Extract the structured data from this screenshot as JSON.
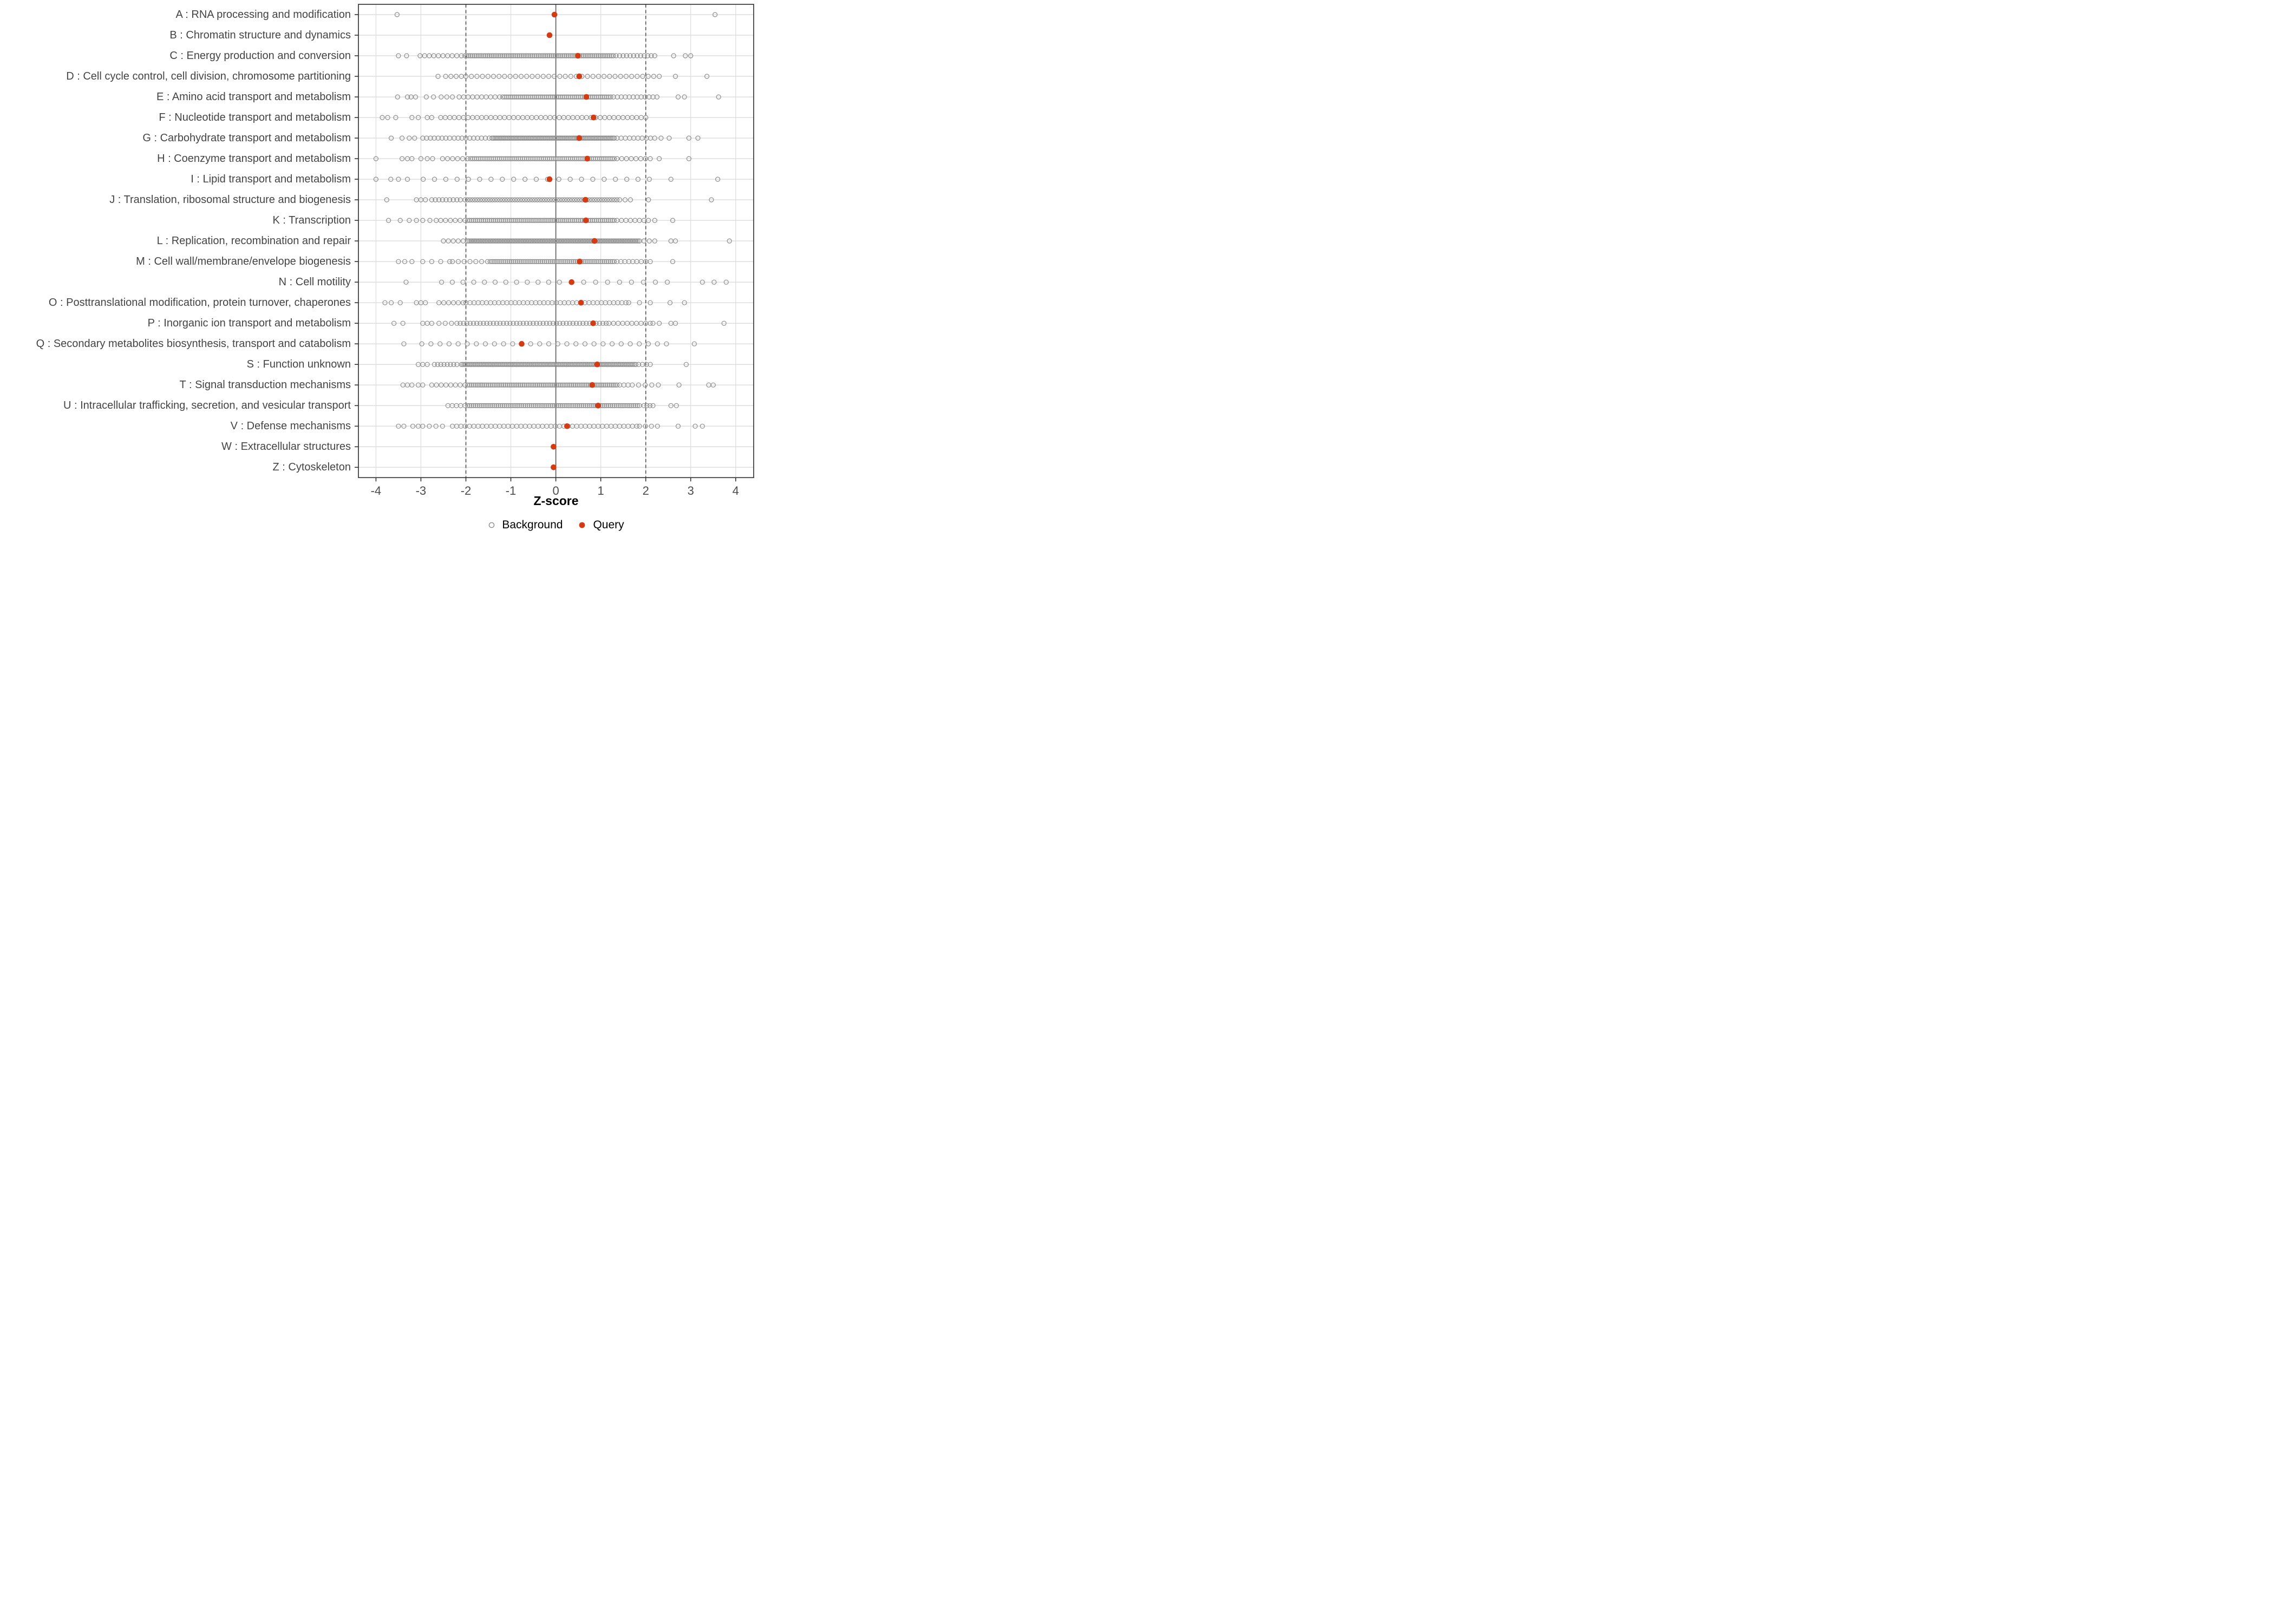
{
  "chart_data": {
    "type": "scatter",
    "variant": "strip-plot",
    "title": "",
    "xlabel": "Z-score",
    "ylabel": "",
    "xlim": [
      -4.39,
      4.4
    ],
    "xticks": [
      -4,
      -3,
      -2,
      -1,
      0,
      1,
      2,
      3,
      4
    ],
    "grid": true,
    "reference_lines": {
      "solid": [
        0
      ],
      "dashed": [
        -2,
        2
      ]
    },
    "legend": {
      "position": "bottom",
      "background_label": "Background",
      "query_label": "Query"
    },
    "colors": {
      "query_fill": "#D33B12",
      "background_stroke": "#8C8C8C",
      "grid_light": "#DEDEDE",
      "ref_solid": "#5A5A5A",
      "ref_dashed": "#4F4F4F",
      "panel_border": "#2B2B2B",
      "tick_mark": "#333333",
      "tick_text": "#4D4D4D",
      "label_text": "#444444"
    },
    "series": [
      {
        "name": "Background",
        "marker": "open-circle"
      },
      {
        "name": "Query",
        "marker": "filled-circle"
      }
    ],
    "categories": [
      {
        "code": "A",
        "label": "A : RNA processing and modification",
        "query": -0.03,
        "bg_points": [
          -3.53,
          3.54
        ],
        "bg_bands": []
      },
      {
        "code": "B",
        "label": "B : Chromatin structure and dynamics",
        "query": -0.14,
        "bg_points": [],
        "bg_bands": []
      },
      {
        "code": "C",
        "label": "C : Energy production and conversion",
        "query": 0.49,
        "bg_points": [
          -3.5,
          -3.32,
          2.62,
          2.88,
          3.0
        ],
        "bg_bands": [
          [
            -3.02,
            -2.1,
            10
          ],
          [
            -2.02,
            1.28,
            80
          ],
          [
            1.34,
            2.2,
            12
          ]
        ]
      },
      {
        "code": "D",
        "label": "D : Cell cycle control, cell division, chromosome partitioning",
        "query": 0.52,
        "bg_points": [
          -2.62,
          2.66,
          3.36
        ],
        "bg_bands": [
          [
            -2.45,
            -2.1,
            4
          ],
          [
            -2.0,
            2.3,
            36
          ]
        ]
      },
      {
        "code": "E",
        "label": "E : Amino acid transport and metabolism",
        "query": 0.68,
        "bg_points": [
          -3.52,
          -3.3,
          -3.22,
          -3.12,
          -2.88,
          -2.72,
          2.72,
          2.86,
          3.62
        ],
        "bg_bands": [
          [
            -2.55,
            -2.3,
            3
          ],
          [
            -2.15,
            -1.25,
            10
          ],
          [
            -1.18,
            1.22,
            55
          ],
          [
            1.28,
            2.25,
            12
          ]
        ]
      },
      {
        "code": "F",
        "label": "F : Nucleotide transport and metabolism",
        "query": 0.84,
        "bg_points": [
          -3.86,
          -3.74,
          -3.56,
          -3.2,
          -3.06,
          -2.86,
          -2.76
        ],
        "bg_bands": [
          [
            -2.56,
            2.0,
            46
          ]
        ]
      },
      {
        "code": "G",
        "label": "G : Carbohydrate transport and metabolism",
        "query": 0.52,
        "bg_points": [
          -3.66,
          -3.42,
          -3.26,
          -3.14,
          2.34,
          2.52,
          2.96,
          3.16
        ],
        "bg_bands": [
          [
            -2.96,
            -2.36,
            8
          ],
          [
            -2.26,
            -1.48,
            10
          ],
          [
            -1.42,
            1.3,
            85
          ],
          [
            1.36,
            2.2,
            10
          ]
        ]
      },
      {
        "code": "H",
        "label": "H : Coenzyme transport and metabolism",
        "query": 0.7,
        "bg_points": [
          -4.0,
          -3.42,
          -3.3,
          -3.2,
          -3.0,
          -2.86,
          -2.74,
          2.3,
          2.96
        ],
        "bg_bands": [
          [
            -2.52,
            -1.96,
            6
          ],
          [
            -1.9,
            1.3,
            70
          ],
          [
            1.36,
            2.1,
            8
          ]
        ]
      },
      {
        "code": "I",
        "label": "I : Lipid transport and metabolism",
        "query": -0.14,
        "bg_points": [
          -4.0,
          -3.67,
          -3.5,
          -3.3,
          2.56,
          3.6
        ],
        "bg_bands": [
          [
            -2.95,
            2.08,
            21
          ]
        ]
      },
      {
        "code": "J",
        "label": "J : Translation, ribosomal structure and biogenesis",
        "query": 0.66,
        "bg_points": [
          -3.76,
          -3.1,
          -3.0,
          -2.9,
          2.06,
          3.46
        ],
        "bg_bands": [
          [
            -2.76,
            -2.12,
            9
          ],
          [
            -2.02,
            1.36,
            62
          ],
          [
            1.42,
            1.66,
            3
          ]
        ]
      },
      {
        "code": "K",
        "label": "K : Transcription",
        "query": 0.67,
        "bg_points": [
          -3.72,
          -3.46,
          -3.26,
          -3.1,
          -2.96,
          -2.8,
          -2.66,
          2.2,
          2.6
        ],
        "bg_bands": [
          [
            -2.56,
            -2.02,
            6
          ],
          [
            -1.96,
            1.3,
            75
          ],
          [
            1.36,
            2.06,
            8
          ]
        ]
      },
      {
        "code": "L",
        "label": "L : Replication, recombination and repair",
        "query": 0.86,
        "bg_points": [
          2.56,
          2.66,
          3.86
        ],
        "bg_bands": [
          [
            -2.5,
            -2.06,
            5
          ],
          [
            -1.96,
            1.86,
            110
          ],
          [
            1.96,
            2.2,
            3
          ]
        ]
      },
      {
        "code": "M",
        "label": "M : Cell wall/membrane/envelope biogenesis",
        "query": 0.53,
        "bg_points": [
          -3.5,
          -3.36,
          -3.2,
          2.6
        ],
        "bg_bands": [
          [
            -2.96,
            -2.36,
            4
          ],
          [
            -2.3,
            -1.52,
            7
          ],
          [
            -1.46,
            1.3,
            65
          ],
          [
            1.36,
            1.8,
            6
          ],
          [
            1.9,
            2.1,
            3
          ]
        ]
      },
      {
        "code": "N",
        "label": "N : Cell motility",
        "query": 0.35,
        "bg_points": [
          -3.33,
          3.26,
          3.52,
          3.79
        ],
        "bg_bands": [
          [
            -2.54,
            0.08,
            12
          ],
          [
            0.62,
            2.48,
            8
          ]
        ]
      },
      {
        "code": "O",
        "label": "O : Posttranslational modification, protein turnover, chaperones",
        "query": 0.56,
        "bg_points": [
          -3.8,
          -3.66,
          -3.46,
          -3.1,
          -3.0,
          -2.9,
          2.1,
          2.54,
          2.86
        ],
        "bg_bands": [
          [
            -2.6,
            -2.06,
            6
          ],
          [
            -2.0,
            1.56,
            40
          ],
          [
            1.62,
            1.86,
            2
          ]
        ]
      },
      {
        "code": "P",
        "label": "P : Inorganic ion transport and metabolism",
        "query": 0.83,
        "bg_points": [
          -3.6,
          -3.4,
          -2.96,
          -2.86,
          -2.76,
          2.56,
          2.66,
          3.74
        ],
        "bg_bands": [
          [
            -2.6,
            -2.32,
            3
          ],
          [
            -2.2,
            1.12,
            46
          ],
          [
            1.18,
            2.1,
            10
          ],
          [
            2.16,
            2.3,
            2
          ]
        ]
      },
      {
        "code": "Q",
        "label": "Q : Secondary metabolites biosynthesis, transport and catabolism",
        "query": -0.76,
        "bg_points": [
          -3.38,
          3.08
        ],
        "bg_bands": [
          [
            -2.98,
            -0.96,
            11
          ],
          [
            -0.56,
            2.46,
            16
          ]
        ]
      },
      {
        "code": "S",
        "label": "S : Function unknown",
        "query": 0.92,
        "bg_points": [
          -3.06,
          -2.96,
          -2.86,
          2.9
        ],
        "bg_bands": [
          [
            -2.7,
            -2.2,
            8
          ],
          [
            -2.1,
            1.78,
            120
          ],
          [
            1.84,
            2.1,
            4
          ]
        ]
      },
      {
        "code": "T",
        "label": "T : Signal transduction mechanisms",
        "query": 0.81,
        "bg_points": [
          -3.4,
          -3.3,
          -3.2,
          -3.06,
          -2.96,
          2.74,
          3.4,
          3.5
        ],
        "bg_bands": [
          [
            -2.76,
            -2.02,
            8
          ],
          [
            -1.96,
            1.36,
            80
          ],
          [
            1.42,
            1.7,
            4
          ],
          [
            1.84,
            2.28,
            4
          ]
        ]
      },
      {
        "code": "U",
        "label": "U : Intracellular trafficking, secretion, and vesicular transport",
        "query": 0.94,
        "bg_points": [
          2.56,
          2.68
        ],
        "bg_bands": [
          [
            -2.4,
            -2.02,
            5
          ],
          [
            -1.96,
            1.86,
            90
          ],
          [
            1.96,
            2.16,
            4
          ]
        ]
      },
      {
        "code": "V",
        "label": "V : Defense mechanisms",
        "query": 0.25,
        "bg_points": [
          -3.5,
          -3.38,
          -3.18,
          -3.06,
          2.72,
          3.1,
          3.26
        ],
        "bg_bands": [
          [
            -2.96,
            -2.52,
            4
          ],
          [
            -2.3,
            1.8,
            44
          ],
          [
            1.86,
            2.26,
            4
          ]
        ]
      },
      {
        "code": "W",
        "label": "W : Extracellular structures",
        "query": -0.05,
        "bg_points": [],
        "bg_bands": []
      },
      {
        "code": "Z",
        "label": "Z : Cytoskeleton",
        "query": -0.05,
        "bg_points": [],
        "bg_bands": []
      }
    ]
  }
}
